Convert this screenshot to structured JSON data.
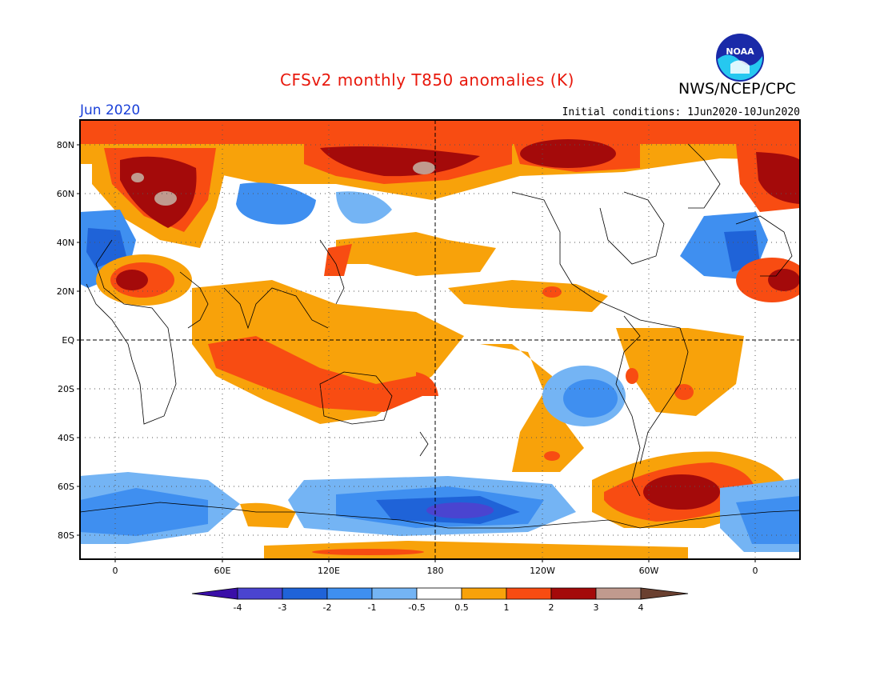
{
  "title": "CFSv2 monthly T850 anomalies (K)",
  "agency": "NWS/NCEP/CPC",
  "logo_text": "NOAA",
  "month": "Jun 2020",
  "initial_conditions": "Initial conditions: 1Jun2020-10Jun2020",
  "lat_labels": [
    "80N",
    "60N",
    "40N",
    "20N",
    "EQ",
    "20S",
    "40S",
    "60S",
    "80S"
  ],
  "lon_labels": [
    "0",
    "60E",
    "120E",
    "180",
    "120W",
    "60W",
    "0"
  ],
  "colorbar": {
    "labels": [
      "-4",
      "-3",
      "-2",
      "-1",
      "-0.5",
      "0.5",
      "1",
      "2",
      "3",
      "4"
    ],
    "colors": [
      "#3a0fa8",
      "#4a44d0",
      "#1f63d8",
      "#3f8ff0",
      "#74b4f4",
      "#ffffff",
      "#f8a20a",
      "#f84c12",
      "#a40a0a",
      "#c09a8e",
      "#6a4030"
    ]
  }
}
